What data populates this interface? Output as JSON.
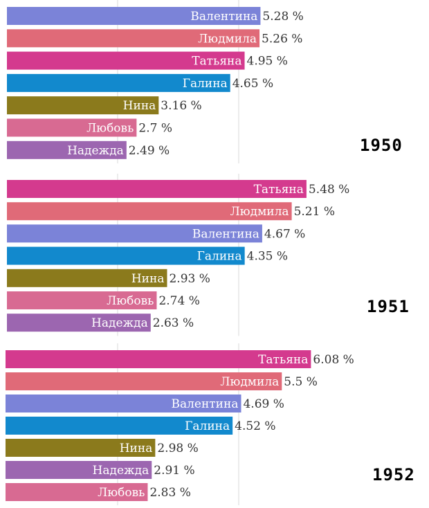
{
  "chart_data": [
    {
      "type": "bar",
      "orientation": "horizontal",
      "year": "1950",
      "unit": "%",
      "categories": [
        "Валентина",
        "Людмила",
        "Татьяна",
        "Галина",
        "Нина",
        "Любовь",
        "Надежда"
      ],
      "values": [
        5.28,
        5.26,
        4.95,
        4.65,
        3.16,
        2.7,
        2.49
      ],
      "value_labels": [
        "5.28 %",
        "5.26 %",
        "4.95 %",
        "4.65 %",
        "3.16 %",
        "2.7 %",
        "2.49 %"
      ],
      "colors": [
        "#7b83d8",
        "#e06a78",
        "#d43a8e",
        "#1289cd",
        "#8b7a1c",
        "#d86a92",
        "#9c66b0"
      ]
    },
    {
      "type": "bar",
      "orientation": "horizontal",
      "year": "1951",
      "unit": "%",
      "categories": [
        "Татьяна",
        "Людмила",
        "Валентина",
        "Галина",
        "Нина",
        "Любовь",
        "Надежда"
      ],
      "values": [
        5.48,
        5.21,
        4.67,
        4.35,
        2.93,
        2.74,
        2.63
      ],
      "value_labels": [
        "5.48 %",
        "5.21 %",
        "4.67 %",
        "4.35 %",
        "2.93 %",
        "2.74 %",
        "2.63 %"
      ],
      "colors": [
        "#d43a8e",
        "#e06a78",
        "#7b83d8",
        "#1289cd",
        "#8b7a1c",
        "#d86a92",
        "#9c66b0"
      ]
    },
    {
      "type": "bar",
      "orientation": "horizontal",
      "year": "1952",
      "unit": "%",
      "categories": [
        "Татьяна",
        "Людмила",
        "Валентина",
        "Галина",
        "Нина",
        "Надежда",
        "Любовь"
      ],
      "values": [
        6.08,
        5.5,
        4.69,
        4.52,
        2.98,
        2.91,
        2.83
      ],
      "value_labels": [
        "6.08 %",
        "5.5 %",
        "4.69 %",
        "4.52 %",
        "2.98 %",
        "2.91 %",
        "2.83 %"
      ],
      "colors": [
        "#d43a8e",
        "#e06a78",
        "#7b83d8",
        "#1289cd",
        "#8b7a1c",
        "#9c66b0",
        "#d86a92"
      ]
    }
  ]
}
